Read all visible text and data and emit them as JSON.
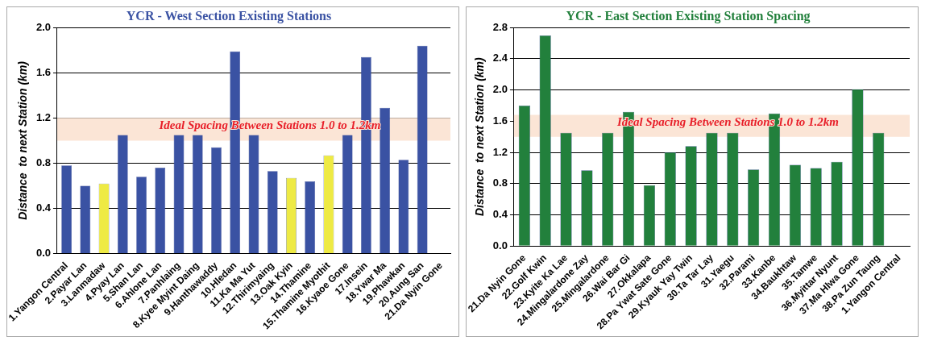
{
  "chart_data": [
    {
      "type": "bar",
      "title": "YCR - West Section Existing Stations",
      "ylabel": "Distance  to next Station (km)",
      "categories": [
        "1.Yangon Central",
        "2.Payar Lan",
        "3.Lanmadaw",
        "4.Pyay Lan",
        "5.Shan Lan",
        "6.Ahlone Lan",
        "7.Panhlaing",
        "8.Kyee Myint Daing",
        "9.Hanthawaddy",
        "10.Hledan",
        "11.Ka Ma Yut",
        "12.Thirimyaing",
        "13.Oak Kyin",
        "14.Thamine",
        "15.Thamine Myothit",
        "16.Kyaoe Gone",
        "17.Insein",
        "18.Ywar Ma",
        "19.Phawkan",
        "20.Aung San",
        "21.Da Nyin Gone"
      ],
      "values": [
        0.78,
        0.6,
        0.62,
        1.05,
        0.68,
        0.76,
        1.05,
        1.05,
        0.94,
        1.79,
        1.05,
        0.73,
        0.67,
        0.64,
        0.87,
        1.05,
        1.74,
        1.29,
        0.83,
        1.84,
        0
      ],
      "colors": [
        "#3a52a3",
        "#3a52a3",
        "#eeea44",
        "#3a52a3",
        "#3a52a3",
        "#3a52a3",
        "#3a52a3",
        "#3a52a3",
        "#3a52a3",
        "#3a52a3",
        "#3a52a3",
        "#3a52a3",
        "#eeea44",
        "#3a52a3",
        "#eeea44",
        "#3a52a3",
        "#3a52a3",
        "#3a52a3",
        "#3a52a3",
        "#3a52a3",
        "#3a52a3"
      ],
      "ylim": [
        0,
        2.0
      ],
      "yticks": [
        {
          "value": 0,
          "label": "0.0"
        },
        {
          "value": 0.4,
          "label": "0.4"
        },
        {
          "value": 0.8,
          "label": "0.8"
        },
        {
          "value": 1.2,
          "label": "1.2"
        },
        {
          "value": 1.6,
          "label": "1.6"
        },
        {
          "value": 2.0,
          "label": "2.0"
        }
      ],
      "bands": [
        {
          "axis": "y",
          "from": 1.0,
          "to": 1.2,
          "label": "Ideal Spacing Between Stations 1.0 to 1.2km",
          "color": "#fbe5d6"
        }
      ],
      "grid": "y",
      "legend": false
    },
    {
      "type": "bar",
      "title": "YCR - East Section Existing Station Spacing",
      "ylabel": "Distance  to next Station (km)",
      "categories": [
        "21.Da Nyin Gone",
        "22.Golf Kwin",
        "23.Kyite Ka Lae",
        "24.Mingalardone Zay",
        "25.Mingalardone",
        "26.Wai Bar Gi",
        "27.Okkalapa",
        "28.Pa Ywat Sate Gone",
        "29.Kyauk Yay Twin",
        "30.Ta Tar Lay",
        "31.Yaegu",
        "32.Parami",
        "33.Kanbe",
        "34.Baukhtaw",
        "35.Tamwe",
        "36.Myittar Nyunt",
        "37.Ma Hlwa Gone",
        "38.Pa Zun Taung",
        "1.Yangon Central"
      ],
      "values": [
        1.8,
        2.7,
        1.45,
        0.97,
        1.45,
        1.72,
        0.78,
        1.2,
        1.28,
        1.45,
        1.45,
        0.98,
        1.7,
        1.04,
        1.0,
        1.08,
        2.01,
        1.45,
        0
      ],
      "colors": [
        "#22803c",
        "#22803c",
        "#22803c",
        "#22803c",
        "#22803c",
        "#22803c",
        "#22803c",
        "#22803c",
        "#22803c",
        "#22803c",
        "#22803c",
        "#22803c",
        "#22803c",
        "#22803c",
        "#22803c",
        "#22803c",
        "#22803c",
        "#22803c",
        "#22803c"
      ],
      "ylim": [
        0,
        2.8
      ],
      "yticks": [
        {
          "value": 0,
          "label": "0.0"
        },
        {
          "value": 0.4,
          "label": "0.4"
        },
        {
          "value": 0.8,
          "label": "0.8"
        },
        {
          "value": 1.2,
          "label": "1.2"
        },
        {
          "value": 1.6,
          "label": "1.6"
        },
        {
          "value": 2.0,
          "label": "2.0"
        },
        {
          "value": 2.4,
          "label": "2.4"
        },
        {
          "value": 2.8,
          "label": "2.8"
        }
      ],
      "bands": [
        {
          "axis": "y",
          "from": 1.4,
          "to": 1.68,
          "label": "Ideal Spacing Between Stations 1.0 to 1.2km",
          "color": "#fbe5d6"
        }
      ],
      "grid": "y",
      "legend": false
    }
  ]
}
